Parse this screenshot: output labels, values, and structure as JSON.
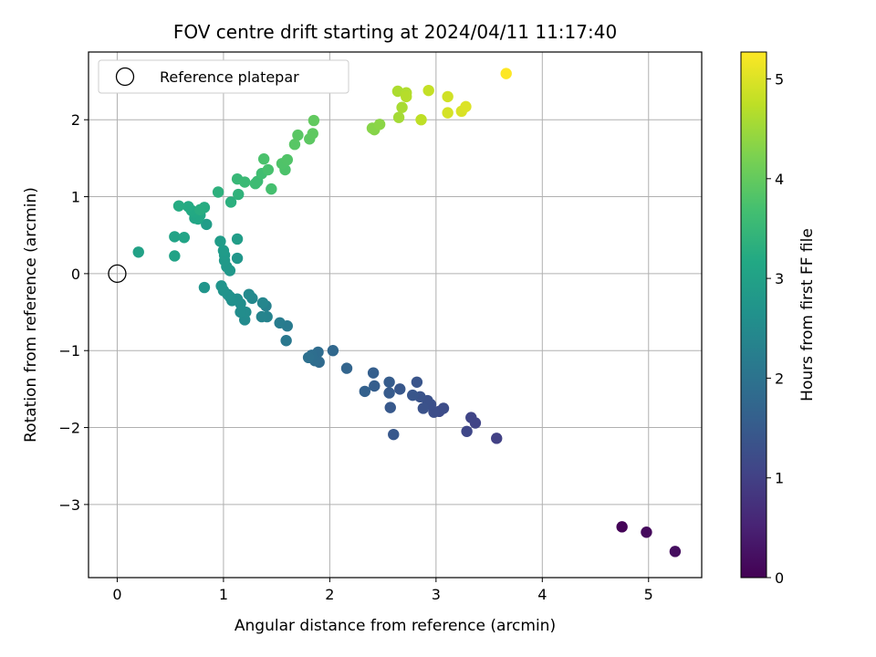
{
  "chart_data": {
    "type": "scatter",
    "title": "FOV centre drift starting at 2024/04/11 11:17:40",
    "xlabel": "Angular distance from reference (arcmin)",
    "ylabel": "Rotation from reference (arcmin)",
    "xlim": [
      -0.27,
      5.5
    ],
    "ylim": [
      -3.95,
      2.88
    ],
    "xticks": [
      0,
      1,
      2,
      3,
      4,
      5
    ],
    "xtick_labels": [
      "0",
      "1",
      "2",
      "3",
      "4",
      "5"
    ],
    "yticks": [
      -3,
      -2,
      -1,
      0,
      1,
      2
    ],
    "ytick_labels": [
      "−3",
      "−2",
      "−1",
      "0",
      "1",
      "2"
    ],
    "grid": true,
    "legend": {
      "position": "top-left",
      "entries": [
        "Reference platepar"
      ]
    },
    "reference_point": {
      "x": 0,
      "y": 0,
      "marker": "open-circle"
    },
    "colorbar": {
      "label": "Hours from first FF file",
      "min": 0,
      "max": 5.27,
      "ticks": [
        0,
        1,
        2,
        3,
        4,
        5
      ],
      "tick_labels": [
        "0",
        "1",
        "2",
        "3",
        "4",
        "5"
      ],
      "colormap": "viridis"
    },
    "series": [
      {
        "marker": "filled-circle",
        "points": [
          [
            4.75,
            -3.29,
            0.05
          ],
          [
            4.98,
            -3.36,
            0.12
          ],
          [
            5.25,
            -3.61,
            0.18
          ],
          [
            3.57,
            -2.14,
            1.0
          ],
          [
            3.37,
            -1.94,
            1.05
          ],
          [
            3.33,
            -1.87,
            1.08
          ],
          [
            3.29,
            -2.05,
            1.12
          ],
          [
            3.03,
            -1.79,
            1.2
          ],
          [
            3.07,
            -1.75,
            1.22
          ],
          [
            2.98,
            -1.8,
            1.25
          ],
          [
            2.95,
            -1.7,
            1.28
          ],
          [
            2.92,
            -1.65,
            1.3
          ],
          [
            2.88,
            -1.75,
            1.32
          ],
          [
            2.85,
            -1.6,
            1.35
          ],
          [
            2.82,
            -1.41,
            1.38
          ],
          [
            2.78,
            -1.58,
            1.4
          ],
          [
            2.66,
            -1.5,
            1.43
          ],
          [
            2.6,
            -2.09,
            1.45
          ],
          [
            2.57,
            -1.74,
            1.47
          ],
          [
            2.56,
            -1.55,
            1.5
          ],
          [
            2.56,
            -1.41,
            1.53
          ],
          [
            2.42,
            -1.46,
            1.56
          ],
          [
            2.41,
            -1.29,
            1.59
          ],
          [
            2.33,
            -1.53,
            1.62
          ],
          [
            2.16,
            -1.23,
            1.7
          ],
          [
            2.03,
            -1.0,
            1.78
          ],
          [
            1.9,
            -1.15,
            1.82
          ],
          [
            1.89,
            -1.02,
            1.85
          ],
          [
            1.86,
            -1.13,
            1.88
          ],
          [
            1.83,
            -1.06,
            1.9
          ],
          [
            1.8,
            -1.09,
            1.93
          ],
          [
            1.59,
            -0.87,
            2.1
          ],
          [
            1.6,
            -0.68,
            2.15
          ],
          [
            1.53,
            -0.64,
            2.2
          ],
          [
            1.4,
            -0.42,
            2.3
          ],
          [
            1.41,
            -0.56,
            2.33
          ],
          [
            1.36,
            -0.56,
            2.36
          ],
          [
            1.37,
            -0.38,
            2.4
          ],
          [
            1.27,
            -0.32,
            2.45
          ],
          [
            1.24,
            -0.27,
            2.48
          ],
          [
            1.2,
            -0.6,
            2.5
          ],
          [
            1.21,
            -0.5,
            2.52
          ],
          [
            1.16,
            -0.5,
            2.55
          ],
          [
            1.16,
            -0.39,
            2.57
          ],
          [
            1.13,
            -0.33,
            2.6
          ],
          [
            1.08,
            -0.35,
            2.62
          ],
          [
            1.06,
            -0.3,
            2.64
          ],
          [
            1.04,
            -0.27,
            2.66
          ],
          [
            1.0,
            -0.22,
            2.68
          ],
          [
            0.98,
            -0.16,
            2.7
          ],
          [
            0.82,
            -0.18,
            2.72
          ],
          [
            1.13,
            0.2,
            2.75
          ],
          [
            1.06,
            0.04,
            2.77
          ],
          [
            1.03,
            0.09,
            2.8
          ],
          [
            1.01,
            0.17,
            2.82
          ],
          [
            1.01,
            0.24,
            2.84
          ],
          [
            1.0,
            0.3,
            2.86
          ],
          [
            0.97,
            0.42,
            2.88
          ],
          [
            1.13,
            0.45,
            2.9
          ],
          [
            0.84,
            0.64,
            2.92
          ],
          [
            0.2,
            0.28,
            3.0
          ],
          [
            0.54,
            0.23,
            3.02
          ],
          [
            0.54,
            0.48,
            3.04
          ],
          [
            0.63,
            0.47,
            3.06
          ],
          [
            0.73,
            0.72,
            3.1
          ],
          [
            0.76,
            0.71,
            3.12
          ],
          [
            0.78,
            0.76,
            3.14
          ],
          [
            0.72,
            0.8,
            3.16
          ],
          [
            0.7,
            0.82,
            3.18
          ],
          [
            0.67,
            0.87,
            3.2
          ],
          [
            0.58,
            0.88,
            3.22
          ],
          [
            0.82,
            0.86,
            3.24
          ],
          [
            0.78,
            0.83,
            3.26
          ],
          [
            1.07,
            0.93,
            3.32
          ],
          [
            0.95,
            1.06,
            3.35
          ],
          [
            1.14,
            1.03,
            3.4
          ],
          [
            1.13,
            1.23,
            3.5
          ],
          [
            1.2,
            1.19,
            3.55
          ],
          [
            1.32,
            1.2,
            3.58
          ],
          [
            1.3,
            1.17,
            3.6
          ],
          [
            1.36,
            1.3,
            3.65
          ],
          [
            1.45,
            1.1,
            3.7
          ],
          [
            1.42,
            1.35,
            3.72
          ],
          [
            1.38,
            1.49,
            3.75
          ],
          [
            1.58,
            1.35,
            3.78
          ],
          [
            1.55,
            1.43,
            3.8
          ],
          [
            1.6,
            1.48,
            3.82
          ],
          [
            1.67,
            1.68,
            3.88
          ],
          [
            1.7,
            1.8,
            3.9
          ],
          [
            1.81,
            1.75,
            3.93
          ],
          [
            1.84,
            1.82,
            3.95
          ],
          [
            1.85,
            1.99,
            3.98
          ],
          [
            2.42,
            1.87,
            4.3
          ],
          [
            2.4,
            1.89,
            4.32
          ],
          [
            2.47,
            1.94,
            4.35
          ],
          [
            2.65,
            2.03,
            4.55
          ],
          [
            2.68,
            2.16,
            4.58
          ],
          [
            2.64,
            2.37,
            4.62
          ],
          [
            2.72,
            2.35,
            4.65
          ],
          [
            2.72,
            2.3,
            4.68
          ],
          [
            2.86,
            2.0,
            4.75
          ],
          [
            2.93,
            2.38,
            4.8
          ],
          [
            3.11,
            2.3,
            4.9
          ],
          [
            3.11,
            2.09,
            4.93
          ],
          [
            3.24,
            2.11,
            4.97
          ],
          [
            3.28,
            2.17,
            5.0
          ],
          [
            3.66,
            2.6,
            5.27
          ]
        ]
      }
    ]
  }
}
